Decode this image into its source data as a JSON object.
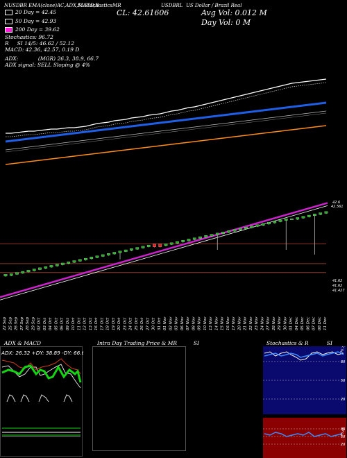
{
  "header": {
    "title_left": "NUSDBR EMA(close)AC,ADX,MACD,B",
    "title_mid": "SLStochasticsMR",
    "ticker": "USDBRL",
    "title_right": "US Dollar / Brazil Real",
    "price_label": "CL: 42.61606",
    "avg_vol": "Avg Vol: 0.012",
    "avg_unit": "M",
    "day_vol": "Day Vol: 0",
    "day_unit": "M"
  },
  "info": {
    "dma20": "20 Day = 42.45",
    "dma50": "50 Day = 42.93",
    "dma200": "200 Day = 39.62",
    "stoch": "Stochastics: 96.72",
    "r": "R",
    "rsi": "SI 14/5: 46.62 / 52.12",
    "macd": "MACD: 42.36, 42.57, 0.19 D",
    "adx": "ADX:",
    "adx_vals": "(MGR) 26.3, 38.9, 66.7",
    "adx_signal": "ADX signal: SELL Sloping @ 4%"
  },
  "colors": {
    "ema_short": "#ffffff",
    "ema_mid": "#1e5fe6",
    "ema_long": "#ff8c1a",
    "up_candle": "#19b519",
    "down_candle": "#e11b1b",
    "support": "#cc22cc",
    "hline": "#8b3a2b",
    "stoch_bg": "#0a0a6e",
    "rsi_bg": "#8b0000",
    "macd_green": "#14d414"
  },
  "price_labels": {
    "top_a": "42.6",
    "top_b": "42.561",
    "low_a": "41.62",
    "low_b": "41.62",
    "low_c": "41.427"
  },
  "dates": [
    "22 Sep",
    "25 Sep",
    "26 Sep",
    "27 Sep",
    "28 Sep",
    "29 Sep",
    "02 Oct",
    "03 Oct",
    "04 Oct",
    "05 Oct",
    "06 Oct",
    "09 Oct",
    "10 Oct",
    "11 Oct",
    "12 Oct",
    "13 Oct",
    "16 Oct",
    "17 Oct",
    "18 Oct",
    "19 Oct",
    "20 Oct",
    "23 Oct",
    "24 Oct",
    "25 Oct",
    "26 Oct",
    "27 Oct",
    "30 Oct",
    "31 Oct",
    "01 Nov",
    "02 Nov",
    "03 Nov",
    "06 Nov",
    "07 Nov",
    "08 Nov",
    "09 Nov",
    "10 Nov",
    "13 Nov",
    "14 Nov",
    "15 Nov",
    "16 Nov",
    "17 Nov",
    "20 Nov",
    "21 Nov",
    "22 Nov",
    "23 Nov",
    "24 Nov",
    "27 Nov",
    "28 Nov",
    "29 Nov",
    "30 Nov",
    "01 Dec",
    "04 Dec",
    "05 Dec",
    "06 Dec",
    "07 Dec",
    "08 Dec",
    "11 Dec"
  ],
  "panels": {
    "adx_title": "ADX & MACD",
    "adx_readout": "ADX: 26.32  +DY: 38.89  -DY: 66.67",
    "intra_title": "Intra Day Trading Price & MR",
    "intra_suffix": "SI",
    "stoch_title": "Stochastics & R",
    "stoch_suffix": "SI",
    "stoch_levels": [
      "80",
      "50",
      "20"
    ],
    "rsi_levels": [
      "80",
      "50",
      "20"
    ],
    "stoch_side_label": "96.72",
    "rsi_side_label": "46.62"
  },
  "chart_data": {
    "type": "line",
    "title": "US Dollar / Brazil Real",
    "candles": [
      {
        "o": 41.34,
        "c": 41.37,
        "h": 41.37,
        "l": 41.33
      },
      {
        "o": 41.35,
        "c": 41.38,
        "h": 41.38,
        "l": 41.34
      },
      {
        "o": 41.37,
        "c": 41.4,
        "h": 41.4,
        "l": 41.36
      },
      {
        "o": 41.39,
        "c": 41.42,
        "h": 41.42,
        "l": 41.38
      },
      {
        "o": 41.41,
        "c": 41.44,
        "h": 41.44,
        "l": 41.4
      },
      {
        "o": 41.43,
        "c": 41.46,
        "h": 41.46,
        "l": 41.42
      },
      {
        "o": 41.45,
        "c": 41.48,
        "h": 41.48,
        "l": 41.44
      },
      {
        "o": 41.47,
        "c": 41.5,
        "h": 41.5,
        "l": 41.46
      },
      {
        "o": 41.49,
        "c": 41.52,
        "h": 41.52,
        "l": 41.48
      },
      {
        "o": 41.51,
        "c": 41.54,
        "h": 41.54,
        "l": 41.5
      },
      {
        "o": 41.53,
        "c": 41.56,
        "h": 41.56,
        "l": 41.52
      },
      {
        "o": 41.55,
        "c": 41.58,
        "h": 41.58,
        "l": 41.54
      },
      {
        "o": 41.57,
        "c": 41.6,
        "h": 41.6,
        "l": 41.56
      },
      {
        "o": 41.59,
        "c": 41.62,
        "h": 41.62,
        "l": 41.58
      },
      {
        "o": 41.61,
        "c": 41.64,
        "h": 41.64,
        "l": 41.6
      },
      {
        "o": 41.63,
        "c": 41.66,
        "h": 41.66,
        "l": 41.62
      },
      {
        "o": 41.65,
        "c": 41.68,
        "h": 41.68,
        "l": 41.64
      },
      {
        "o": 41.67,
        "c": 41.7,
        "h": 41.7,
        "l": 41.66
      },
      {
        "o": 41.69,
        "c": 41.72,
        "h": 41.72,
        "l": 41.68
      },
      {
        "o": 41.71,
        "c": 41.74,
        "h": 41.74,
        "l": 41.7
      },
      {
        "o": 41.73,
        "c": 41.76,
        "h": 41.76,
        "l": 41.62
      },
      {
        "o": 41.75,
        "c": 41.78,
        "h": 41.78,
        "l": 41.74
      },
      {
        "o": 41.77,
        "c": 41.8,
        "h": 41.8,
        "l": 41.76
      },
      {
        "o": 41.79,
        "c": 41.82,
        "h": 41.82,
        "l": 41.78
      },
      {
        "o": 41.81,
        "c": 41.84,
        "h": 41.84,
        "l": 41.8
      },
      {
        "o": 41.83,
        "c": 41.86,
        "h": 41.86,
        "l": 41.82
      },
      {
        "o": 41.88,
        "c": 41.83,
        "h": 41.88,
        "l": 41.82
      },
      {
        "o": 41.88,
        "c": 41.83,
        "h": 41.88,
        "l": 41.82
      },
      {
        "o": 41.85,
        "c": 41.88,
        "h": 41.88,
        "l": 41.84
      },
      {
        "o": 41.87,
        "c": 41.9,
        "h": 41.9,
        "l": 41.86
      },
      {
        "o": 41.89,
        "c": 41.92,
        "h": 41.92,
        "l": 41.88
      },
      {
        "o": 41.91,
        "c": 41.94,
        "h": 41.94,
        "l": 41.9
      },
      {
        "o": 41.93,
        "c": 41.96,
        "h": 41.96,
        "l": 41.92
      },
      {
        "o": 41.95,
        "c": 41.98,
        "h": 41.98,
        "l": 41.94
      },
      {
        "o": 41.97,
        "c": 42.0,
        "h": 42.0,
        "l": 41.96
      },
      {
        "o": 41.99,
        "c": 42.02,
        "h": 42.02,
        "l": 41.98
      },
      {
        "o": 42.01,
        "c": 42.04,
        "h": 42.04,
        "l": 42.0
      },
      {
        "o": 42.03,
        "c": 42.06,
        "h": 42.06,
        "l": 41.78
      },
      {
        "o": 42.05,
        "c": 42.08,
        "h": 42.08,
        "l": 42.04
      },
      {
        "o": 42.07,
        "c": 42.1,
        "h": 42.1,
        "l": 42.06
      },
      {
        "o": 42.09,
        "c": 42.12,
        "h": 42.12,
        "l": 42.08
      },
      {
        "o": 42.11,
        "c": 42.14,
        "h": 42.14,
        "l": 42.1
      },
      {
        "o": 42.13,
        "c": 42.16,
        "h": 42.16,
        "l": 42.12
      },
      {
        "o": 42.15,
        "c": 42.18,
        "h": 42.18,
        "l": 42.14
      },
      {
        "o": 42.17,
        "c": 42.2,
        "h": 42.2,
        "l": 42.16
      },
      {
        "o": 42.19,
        "c": 42.22,
        "h": 42.22,
        "l": 42.18
      },
      {
        "o": 42.21,
        "c": 42.24,
        "h": 42.24,
        "l": 42.2
      },
      {
        "o": 42.23,
        "c": 42.26,
        "h": 42.26,
        "l": 42.22
      },
      {
        "o": 42.25,
        "c": 42.28,
        "h": 42.28,
        "l": 42.24
      },
      {
        "o": 42.27,
        "c": 42.3,
        "h": 42.3,
        "l": 41.78
      },
      {
        "o": 42.3,
        "c": 42.3,
        "h": 42.3,
        "l": 42.29
      },
      {
        "o": 42.29,
        "c": 42.32,
        "h": 42.32,
        "l": 42.28
      },
      {
        "o": 42.31,
        "c": 42.34,
        "h": 42.34,
        "l": 42.3
      },
      {
        "o": 42.33,
        "c": 42.36,
        "h": 42.36,
        "l": 42.32
      },
      {
        "o": 42.35,
        "c": 42.38,
        "h": 42.38,
        "l": 41.7
      },
      {
        "o": 42.37,
        "c": 42.4,
        "h": 42.4,
        "l": 42.36
      },
      {
        "o": 42.39,
        "c": 42.42,
        "h": 42.42,
        "l": 42.38
      }
    ],
    "ylim": [
      41.2,
      42.65
    ],
    "support_line": [
      41.22,
      42.1
    ],
    "hlines": [
      41.88,
      41.55,
      41.4
    ],
    "ema_short": [
      42.9,
      42.9,
      42.91,
      42.92,
      42.93,
      42.93,
      42.94,
      42.95,
      42.96,
      42.96,
      42.97,
      42.98,
      42.98,
      42.99,
      43.0,
      43.02,
      43.04,
      43.05,
      43.06,
      43.08,
      43.09,
      43.1,
      43.12,
      43.13,
      43.14,
      43.16,
      43.17,
      43.18,
      43.2,
      43.22,
      43.23,
      43.25,
      43.27,
      43.28,
      43.3,
      43.32,
      43.34,
      43.36,
      43.38,
      43.4,
      43.42,
      43.44,
      43.46,
      43.48,
      43.5,
      43.52,
      43.54,
      43.56,
      43.58,
      43.6,
      43.62,
      43.63,
      43.64,
      43.65,
      43.66,
      43.67,
      43.68
    ],
    "ema_mid": [
      42.78,
      42.79,
      42.8,
      42.81,
      42.82,
      42.83,
      42.84,
      42.85,
      42.86,
      42.87,
      42.88,
      42.89,
      42.9,
      42.91,
      42.92,
      42.93,
      42.94,
      42.95,
      42.96,
      42.97,
      42.98,
      42.99,
      43.0,
      43.01,
      43.02,
      43.03,
      43.04,
      43.05,
      43.06,
      43.07,
      43.08,
      43.09,
      43.1,
      43.11,
      43.12,
      43.13,
      43.14,
      43.15,
      43.16,
      43.17,
      43.18,
      43.19,
      43.2,
      43.21,
      43.22,
      43.23,
      43.24,
      43.25,
      43.26,
      43.27,
      43.28,
      43.29,
      43.3,
      43.31,
      43.32,
      43.33,
      43.34
    ],
    "ema_long": [
      42.45,
      42.46,
      42.47,
      42.48,
      42.49,
      42.5,
      42.51,
      42.52,
      42.53,
      42.54,
      42.55,
      42.56,
      42.57,
      42.58,
      42.59,
      42.6,
      42.61,
      42.62,
      42.63,
      42.64,
      42.65,
      42.66,
      42.67,
      42.68,
      42.69,
      42.7,
      42.71,
      42.72,
      42.73,
      42.74,
      42.75,
      42.76,
      42.77,
      42.78,
      42.79,
      42.8,
      42.81,
      42.82,
      42.83,
      42.84,
      42.85,
      42.86,
      42.87,
      42.88,
      42.89,
      42.9,
      42.91,
      42.92,
      42.93,
      42.94,
      42.95,
      42.96,
      42.97,
      42.98,
      42.99,
      43.0,
      43.01
    ]
  }
}
